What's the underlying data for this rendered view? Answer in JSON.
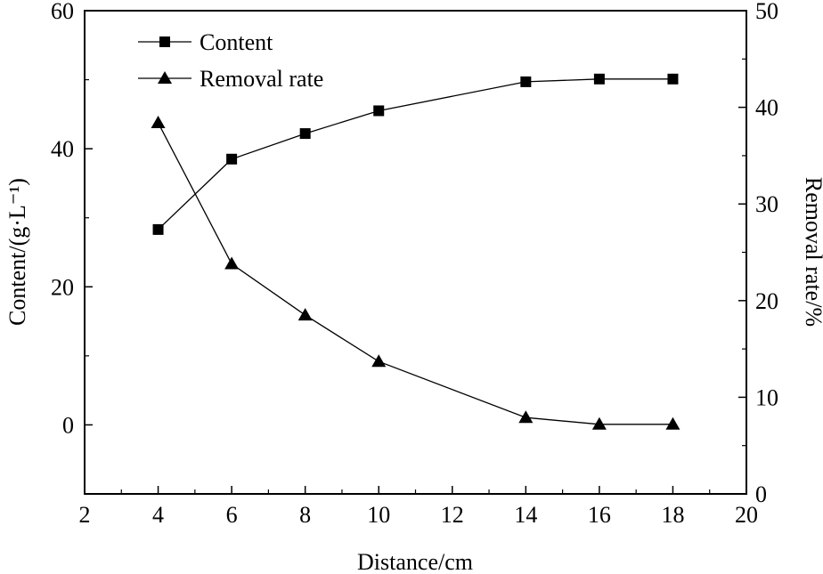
{
  "chart_data": {
    "type": "line",
    "title": "",
    "xlabel": "Distance/cm",
    "ylabel": "Content/(g·L⁻¹)",
    "y2label": "Removal rate/%",
    "xlim": [
      2,
      20
    ],
    "ylim": [
      -10,
      60
    ],
    "y2lim": [
      0,
      50
    ],
    "xticks": [
      2,
      4,
      6,
      8,
      10,
      12,
      14,
      16,
      18,
      20
    ],
    "yticks": [
      0,
      20,
      40,
      60
    ],
    "y2ticks": [
      0,
      10,
      20,
      30,
      40,
      50
    ],
    "grid": false,
    "legend_position": "top-left",
    "x": [
      4,
      6,
      8,
      10,
      14,
      16,
      18
    ],
    "series": [
      {
        "name": "Content",
        "axis": "left",
        "marker": "square",
        "values": [
          28.3,
          38.5,
          42.2,
          45.5,
          49.7,
          50.1,
          50.1
        ]
      },
      {
        "name": "Removal rate",
        "axis": "right",
        "marker": "triangle",
        "values": [
          38.4,
          23.8,
          18.5,
          13.7,
          7.9,
          7.2,
          7.2
        ]
      }
    ]
  }
}
